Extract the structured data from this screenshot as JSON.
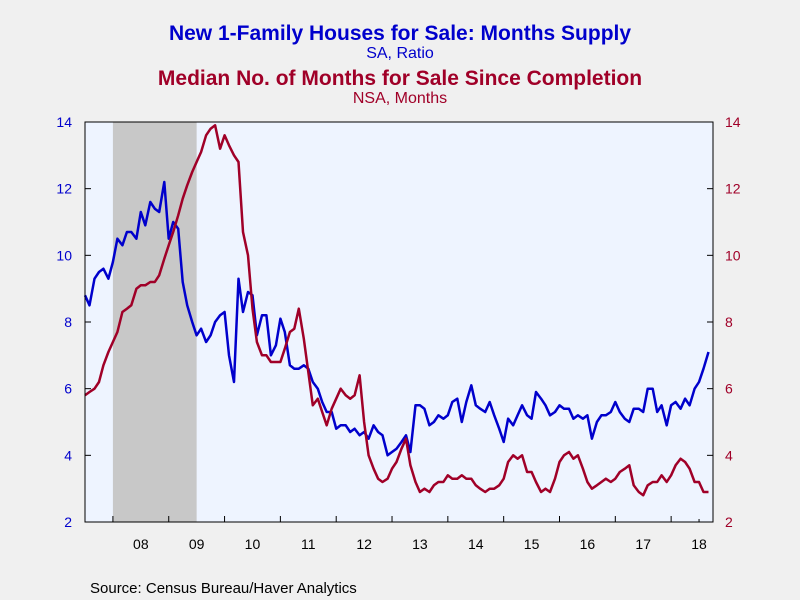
{
  "chart_data": {
    "type": "line",
    "title": "New 1-Family Houses for Sale: Months Supply",
    "subtitle": "SA, Ratio",
    "title2": "Median No. of Months for Sale Since Completion",
    "subtitle2": "NSA, Months",
    "source": "Source:  Census Bureau/Haver Analytics",
    "x_tick_labels": [
      "08",
      "09",
      "10",
      "11",
      "12",
      "13",
      "14",
      "15",
      "16",
      "17",
      "18"
    ],
    "x_range": [
      2007.5,
      2018.75
    ],
    "y_left": {
      "range": [
        2,
        14
      ],
      "ticks": [
        "2",
        "4",
        "6",
        "8",
        "10",
        "12",
        "14"
      ]
    },
    "y_right": {
      "range": [
        2,
        14
      ],
      "ticks": [
        "2",
        "4",
        "6",
        "8",
        "10",
        "12",
        "14"
      ]
    },
    "recession": [
      2008.0,
      2009.5
    ],
    "grid": false,
    "colors": {
      "series1": "#0000cc",
      "series2": "#a00028",
      "recession": "#c8c8c8",
      "plot_bg": "#eef4ff",
      "tick_left": "#0000cc",
      "tick_right": "#a00028"
    },
    "series": [
      {
        "axis": "left",
        "color": "#0000cc",
        "points": [
          [
            2007.5,
            8.8
          ],
          [
            2007.58,
            8.5
          ],
          [
            2007.67,
            9.3
          ],
          [
            2007.75,
            9.5
          ],
          [
            2007.83,
            9.6
          ],
          [
            2007.92,
            9.3
          ],
          [
            2008.0,
            9.8
          ],
          [
            2008.08,
            10.5
          ],
          [
            2008.17,
            10.3
          ],
          [
            2008.25,
            10.7
          ],
          [
            2008.33,
            10.7
          ],
          [
            2008.42,
            10.5
          ],
          [
            2008.5,
            11.3
          ],
          [
            2008.58,
            10.9
          ],
          [
            2008.67,
            11.6
          ],
          [
            2008.75,
            11.4
          ],
          [
            2008.83,
            11.3
          ],
          [
            2008.92,
            12.2
          ],
          [
            2009.0,
            10.5
          ],
          [
            2009.08,
            11.0
          ],
          [
            2009.17,
            10.8
          ],
          [
            2009.25,
            9.2
          ],
          [
            2009.33,
            8.5
          ],
          [
            2009.42,
            8.0
          ],
          [
            2009.5,
            7.6
          ],
          [
            2009.58,
            7.8
          ],
          [
            2009.67,
            7.4
          ],
          [
            2009.75,
            7.6
          ],
          [
            2009.83,
            8.0
          ],
          [
            2009.92,
            8.2
          ],
          [
            2010.0,
            8.3
          ],
          [
            2010.08,
            7.0
          ],
          [
            2010.17,
            6.2
          ],
          [
            2010.25,
            9.3
          ],
          [
            2010.33,
            8.3
          ],
          [
            2010.42,
            8.9
          ],
          [
            2010.5,
            8.8
          ],
          [
            2010.58,
            7.6
          ],
          [
            2010.67,
            8.2
          ],
          [
            2010.75,
            8.2
          ],
          [
            2010.83,
            7.0
          ],
          [
            2010.92,
            7.3
          ],
          [
            2011.0,
            8.1
          ],
          [
            2011.08,
            7.7
          ],
          [
            2011.17,
            6.7
          ],
          [
            2011.25,
            6.6
          ],
          [
            2011.33,
            6.6
          ],
          [
            2011.42,
            6.7
          ],
          [
            2011.5,
            6.6
          ],
          [
            2011.58,
            6.2
          ],
          [
            2011.67,
            6.0
          ],
          [
            2011.75,
            5.6
          ],
          [
            2011.83,
            5.3
          ],
          [
            2011.92,
            5.3
          ],
          [
            2012.0,
            4.8
          ],
          [
            2012.08,
            4.9
          ],
          [
            2012.17,
            4.9
          ],
          [
            2012.25,
            4.7
          ],
          [
            2012.33,
            4.8
          ],
          [
            2012.42,
            4.6
          ],
          [
            2012.5,
            4.7
          ],
          [
            2012.58,
            4.5
          ],
          [
            2012.67,
            4.9
          ],
          [
            2012.75,
            4.7
          ],
          [
            2012.83,
            4.6
          ],
          [
            2012.92,
            4.0
          ],
          [
            2013.0,
            4.1
          ],
          [
            2013.08,
            4.2
          ],
          [
            2013.17,
            4.4
          ],
          [
            2013.25,
            4.6
          ],
          [
            2013.33,
            4.1
          ],
          [
            2013.42,
            5.5
          ],
          [
            2013.5,
            5.5
          ],
          [
            2013.58,
            5.4
          ],
          [
            2013.67,
            4.9
          ],
          [
            2013.75,
            5.0
          ],
          [
            2013.83,
            5.2
          ],
          [
            2013.92,
            5.1
          ],
          [
            2014.0,
            5.2
          ],
          [
            2014.08,
            5.6
          ],
          [
            2014.17,
            5.7
          ],
          [
            2014.25,
            5.0
          ],
          [
            2014.33,
            5.6
          ],
          [
            2014.42,
            6.1
          ],
          [
            2014.5,
            5.5
          ],
          [
            2014.58,
            5.4
          ],
          [
            2014.67,
            5.3
          ],
          [
            2014.75,
            5.6
          ],
          [
            2014.83,
            5.2
          ],
          [
            2014.92,
            4.8
          ],
          [
            2015.0,
            4.4
          ],
          [
            2015.08,
            5.1
          ],
          [
            2015.17,
            4.9
          ],
          [
            2015.25,
            5.2
          ],
          [
            2015.33,
            5.5
          ],
          [
            2015.42,
            5.2
          ],
          [
            2015.5,
            5.1
          ],
          [
            2015.58,
            5.9
          ],
          [
            2015.67,
            5.7
          ],
          [
            2015.75,
            5.5
          ],
          [
            2015.83,
            5.2
          ],
          [
            2015.92,
            5.3
          ],
          [
            2016.0,
            5.5
          ],
          [
            2016.08,
            5.4
          ],
          [
            2016.17,
            5.4
          ],
          [
            2016.25,
            5.1
          ],
          [
            2016.33,
            5.2
          ],
          [
            2016.42,
            5.1
          ],
          [
            2016.5,
            5.2
          ],
          [
            2016.58,
            4.5
          ],
          [
            2016.67,
            5.0
          ],
          [
            2016.75,
            5.2
          ],
          [
            2016.83,
            5.2
          ],
          [
            2016.92,
            5.3
          ],
          [
            2017.0,
            5.6
          ],
          [
            2017.08,
            5.3
          ],
          [
            2017.17,
            5.1
          ],
          [
            2017.25,
            5.0
          ],
          [
            2017.33,
            5.4
          ],
          [
            2017.42,
            5.4
          ],
          [
            2017.5,
            5.3
          ],
          [
            2017.58,
            6.0
          ],
          [
            2017.67,
            6.0
          ],
          [
            2017.75,
            5.3
          ],
          [
            2017.83,
            5.5
          ],
          [
            2017.92,
            4.9
          ],
          [
            2018.0,
            5.5
          ],
          [
            2018.08,
            5.6
          ],
          [
            2018.17,
            5.4
          ],
          [
            2018.25,
            5.7
          ],
          [
            2018.33,
            5.5
          ],
          [
            2018.42,
            6.0
          ],
          [
            2018.5,
            6.2
          ],
          [
            2018.58,
            6.6
          ],
          [
            2018.67,
            7.1
          ]
        ]
      },
      {
        "axis": "right",
        "color": "#a00028",
        "points": [
          [
            2007.5,
            5.8
          ],
          [
            2007.58,
            5.9
          ],
          [
            2007.67,
            6.0
          ],
          [
            2007.75,
            6.2
          ],
          [
            2007.83,
            6.7
          ],
          [
            2007.92,
            7.1
          ],
          [
            2008.0,
            7.4
          ],
          [
            2008.08,
            7.7
          ],
          [
            2008.17,
            8.3
          ],
          [
            2008.25,
            8.4
          ],
          [
            2008.33,
            8.5
          ],
          [
            2008.42,
            9.0
          ],
          [
            2008.5,
            9.1
          ],
          [
            2008.58,
            9.1
          ],
          [
            2008.67,
            9.2
          ],
          [
            2008.75,
            9.2
          ],
          [
            2008.83,
            9.4
          ],
          [
            2008.92,
            9.9
          ],
          [
            2009.0,
            10.3
          ],
          [
            2009.08,
            10.7
          ],
          [
            2009.17,
            11.2
          ],
          [
            2009.25,
            11.7
          ],
          [
            2009.33,
            12.1
          ],
          [
            2009.42,
            12.5
          ],
          [
            2009.5,
            12.8
          ],
          [
            2009.58,
            13.1
          ],
          [
            2009.67,
            13.6
          ],
          [
            2009.75,
            13.8
          ],
          [
            2009.83,
            13.9
          ],
          [
            2009.92,
            13.2
          ],
          [
            2010.0,
            13.6
          ],
          [
            2010.08,
            13.3
          ],
          [
            2010.17,
            13.0
          ],
          [
            2010.25,
            12.8
          ],
          [
            2010.33,
            10.7
          ],
          [
            2010.42,
            10.0
          ],
          [
            2010.5,
            8.4
          ],
          [
            2010.58,
            7.4
          ],
          [
            2010.67,
            7.0
          ],
          [
            2010.75,
            7.0
          ],
          [
            2010.83,
            6.8
          ],
          [
            2010.92,
            6.8
          ],
          [
            2011.0,
            6.8
          ],
          [
            2011.08,
            7.2
          ],
          [
            2011.17,
            7.7
          ],
          [
            2011.25,
            7.8
          ],
          [
            2011.33,
            8.4
          ],
          [
            2011.42,
            7.5
          ],
          [
            2011.5,
            6.5
          ],
          [
            2011.58,
            5.5
          ],
          [
            2011.67,
            5.7
          ],
          [
            2011.75,
            5.3
          ],
          [
            2011.83,
            4.9
          ],
          [
            2011.92,
            5.4
          ],
          [
            2012.0,
            5.7
          ],
          [
            2012.08,
            6.0
          ],
          [
            2012.17,
            5.8
          ],
          [
            2012.25,
            5.7
          ],
          [
            2012.33,
            5.8
          ],
          [
            2012.42,
            6.4
          ],
          [
            2012.5,
            5.0
          ],
          [
            2012.58,
            4.0
          ],
          [
            2012.67,
            3.6
          ],
          [
            2012.75,
            3.3
          ],
          [
            2012.83,
            3.2
          ],
          [
            2012.92,
            3.3
          ],
          [
            2013.0,
            3.6
          ],
          [
            2013.08,
            3.8
          ],
          [
            2013.17,
            4.2
          ],
          [
            2013.25,
            4.5
          ],
          [
            2013.33,
            3.7
          ],
          [
            2013.42,
            3.2
          ],
          [
            2013.5,
            2.9
          ],
          [
            2013.58,
            3.0
          ],
          [
            2013.67,
            2.9
          ],
          [
            2013.75,
            3.1
          ],
          [
            2013.83,
            3.2
          ],
          [
            2013.92,
            3.2
          ],
          [
            2014.0,
            3.4
          ],
          [
            2014.08,
            3.3
          ],
          [
            2014.17,
            3.3
          ],
          [
            2014.25,
            3.4
          ],
          [
            2014.33,
            3.3
          ],
          [
            2014.42,
            3.3
          ],
          [
            2014.5,
            3.1
          ],
          [
            2014.58,
            3.0
          ],
          [
            2014.67,
            2.9
          ],
          [
            2014.75,
            3.0
          ],
          [
            2014.83,
            3.0
          ],
          [
            2014.92,
            3.1
          ],
          [
            2015.0,
            3.3
          ],
          [
            2015.08,
            3.8
          ],
          [
            2015.17,
            4.0
          ],
          [
            2015.25,
            3.9
          ],
          [
            2015.33,
            4.0
          ],
          [
            2015.42,
            3.5
          ],
          [
            2015.5,
            3.5
          ],
          [
            2015.58,
            3.2
          ],
          [
            2015.67,
            2.9
          ],
          [
            2015.75,
            3.0
          ],
          [
            2015.83,
            2.9
          ],
          [
            2015.92,
            3.3
          ],
          [
            2016.0,
            3.8
          ],
          [
            2016.08,
            4.0
          ],
          [
            2016.17,
            4.1
          ],
          [
            2016.25,
            3.9
          ],
          [
            2016.33,
            4.0
          ],
          [
            2016.42,
            3.6
          ],
          [
            2016.5,
            3.2
          ],
          [
            2016.58,
            3.0
          ],
          [
            2016.67,
            3.1
          ],
          [
            2016.75,
            3.2
          ],
          [
            2016.83,
            3.3
          ],
          [
            2016.92,
            3.2
          ],
          [
            2017.0,
            3.3
          ],
          [
            2017.08,
            3.5
          ],
          [
            2017.17,
            3.6
          ],
          [
            2017.25,
            3.7
          ],
          [
            2017.33,
            3.1
          ],
          [
            2017.42,
            2.9
          ],
          [
            2017.5,
            2.8
          ],
          [
            2017.58,
            3.1
          ],
          [
            2017.67,
            3.2
          ],
          [
            2017.75,
            3.2
          ],
          [
            2017.83,
            3.4
          ],
          [
            2017.92,
            3.2
          ],
          [
            2018.0,
            3.4
          ],
          [
            2018.08,
            3.7
          ],
          [
            2018.17,
            3.9
          ],
          [
            2018.25,
            3.8
          ],
          [
            2018.33,
            3.6
          ],
          [
            2018.42,
            3.2
          ],
          [
            2018.5,
            3.2
          ],
          [
            2018.58,
            2.9
          ],
          [
            2018.67,
            2.9
          ]
        ]
      }
    ]
  }
}
